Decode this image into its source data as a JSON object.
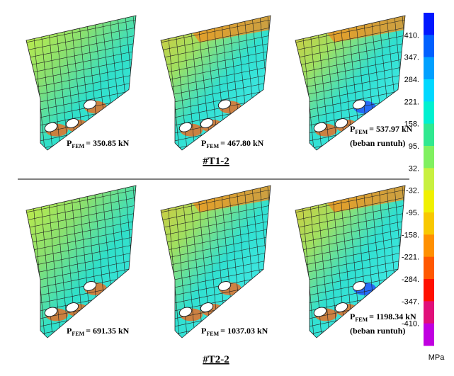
{
  "figure": {
    "groups": [
      {
        "title": "#T1-2",
        "panels": [
          {
            "symbol": "P",
            "subscript": "FEM",
            "load": "= 350.85 kN"
          },
          {
            "symbol": "P",
            "subscript": "FEM",
            "load": "= 467.80 kN"
          },
          {
            "symbol": "P",
            "subscript": "FEM",
            "load": "= 537.97 kN",
            "note": "(beban runtuh)"
          }
        ]
      },
      {
        "title": "#T2-2",
        "panels": [
          {
            "symbol": "P",
            "subscript": "FEM",
            "load": "= 691.35 kN"
          },
          {
            "symbol": "P",
            "subscript": "FEM",
            "load": "= 1037.03 kN"
          },
          {
            "symbol": "P",
            "subscript": "FEM",
            "load": "= 1198.34 kN",
            "note": "(beban runtuh)"
          }
        ]
      }
    ],
    "colorbar": {
      "labels": [
        "410.",
        "347.",
        "284.",
        "221.",
        "158.",
        "95.",
        "32.",
        "-32.",
        "-95.",
        "-158.",
        "-221.",
        "-284.",
        "-347.",
        "-410."
      ],
      "colors": [
        "#0018ff",
        "#0060ff",
        "#00a0ff",
        "#00d8ff",
        "#00f0d0",
        "#30e890",
        "#80f060",
        "#c8f040",
        "#f0f000",
        "#f8c800",
        "#ff9000",
        "#ff5800",
        "#ff1000",
        "#e0107a",
        "#c000e0"
      ],
      "unit": "MPa"
    }
  }
}
